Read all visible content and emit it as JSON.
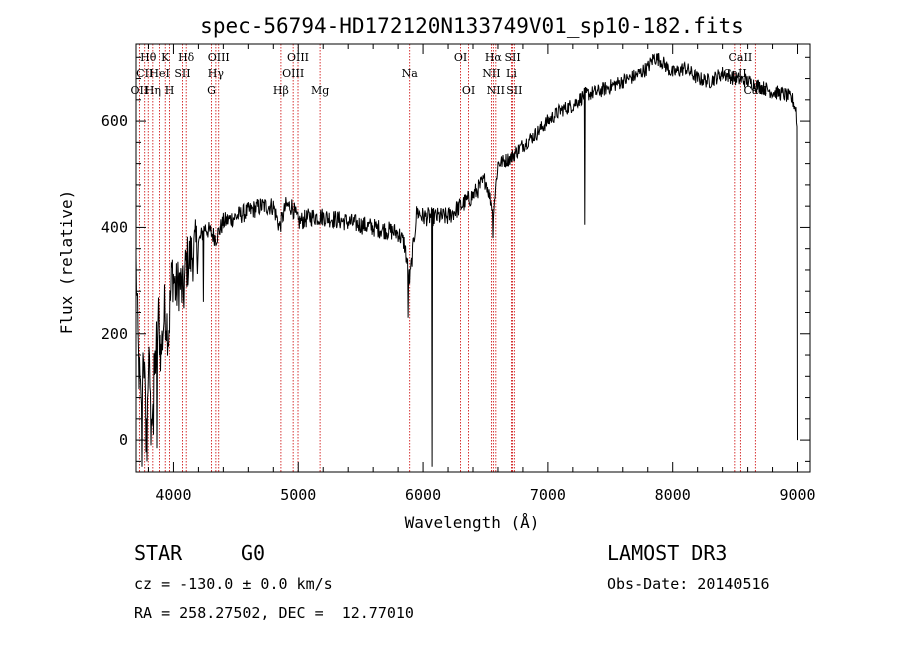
{
  "chart_data": {
    "type": "line",
    "title": "spec-56794-HD172120N133749V01_sp10-182.fits",
    "xlabel": "Wavelength (Å)",
    "ylabel": "Flux (relative)",
    "xlim": [
      3700,
      9100
    ],
    "ylim": [
      -60,
      745
    ],
    "xticks": [
      4000,
      5000,
      6000,
      7000,
      8000,
      9000
    ],
    "yticks": [
      0,
      200,
      400,
      600
    ],
    "series": [
      {
        "name": "Flux",
        "anchors": [
          [
            3700,
            330
          ],
          [
            3720,
            150
          ],
          [
            3740,
            60
          ],
          [
            3760,
            180
          ],
          [
            3780,
            20
          ],
          [
            3800,
            140
          ],
          [
            3830,
            60
          ],
          [
            3860,
            170
          ],
          [
            3880,
            230
          ],
          [
            3900,
            160
          ],
          [
            3930,
            250
          ],
          [
            3960,
            200
          ],
          [
            3990,
            320
          ],
          [
            4020,
            280
          ],
          [
            4050,
            300
          ],
          [
            4080,
            270
          ],
          [
            4100,
            330
          ],
          [
            4150,
            350
          ],
          [
            4200,
            370
          ],
          [
            4250,
            400
          ],
          [
            4300,
            390
          ],
          [
            4340,
            380
          ],
          [
            4400,
            410
          ],
          [
            4500,
            420
          ],
          [
            4600,
            430
          ],
          [
            4700,
            440
          ],
          [
            4800,
            440
          ],
          [
            4850,
            400
          ],
          [
            4900,
            440
          ],
          [
            4950,
            440
          ],
          [
            5000,
            410
          ],
          [
            5100,
            420
          ],
          [
            5200,
            420
          ],
          [
            5300,
            415
          ],
          [
            5400,
            410
          ],
          [
            5500,
            405
          ],
          [
            5600,
            400
          ],
          [
            5700,
            395
          ],
          [
            5800,
            390
          ],
          [
            5850,
            370
          ],
          [
            5893,
            300
          ],
          [
            5950,
            430
          ],
          [
            6000,
            420
          ],
          [
            6100,
            420
          ],
          [
            6200,
            420
          ],
          [
            6300,
            440
          ],
          [
            6400,
            460
          ],
          [
            6500,
            490
          ],
          [
            6563,
            430
          ],
          [
            6600,
            520
          ],
          [
            6700,
            530
          ],
          [
            6800,
            555
          ],
          [
            6900,
            575
          ],
          [
            7000,
            600
          ],
          [
            7100,
            620
          ],
          [
            7200,
            630
          ],
          [
            7300,
            650
          ],
          [
            7400,
            655
          ],
          [
            7500,
            665
          ],
          [
            7600,
            675
          ],
          [
            7700,
            685
          ],
          [
            7800,
            700
          ],
          [
            7850,
            720
          ],
          [
            7900,
            715
          ],
          [
            8000,
            690
          ],
          [
            8100,
            700
          ],
          [
            8200,
            680
          ],
          [
            8300,
            675
          ],
          [
            8400,
            690
          ],
          [
            8500,
            680
          ],
          [
            8600,
            675
          ],
          [
            8700,
            665
          ],
          [
            8800,
            655
          ],
          [
            8900,
            650
          ],
          [
            8960,
            640
          ],
          [
            8990,
            620
          ],
          [
            9000,
            560
          ]
        ],
        "spikes": [
          {
            "x": 3750,
            "y": -50
          },
          {
            "x": 3790,
            "y": -40
          },
          {
            "x": 3820,
            "y": -10
          },
          {
            "x": 3840,
            "y": 10
          },
          {
            "x": 3870,
            "y": -15
          },
          {
            "x": 4240,
            "y": 260
          },
          {
            "x": 5880,
            "y": 230
          },
          {
            "x": 6072,
            "y": -50
          },
          {
            "x": 6562,
            "y": 380
          },
          {
            "x": 7297,
            "y": 405
          },
          {
            "x": 9000,
            "y": 0
          }
        ]
      }
    ],
    "lines": [
      {
        "name": "Hθ",
        "wl": 3798,
        "row": 1
      },
      {
        "name": "CII",
        "wl": 3770,
        "row": 2
      },
      {
        "name": "OII",
        "wl": 3727,
        "row": 3
      },
      {
        "name": "Hη",
        "wl": 3835,
        "row": 3
      },
      {
        "name": "K",
        "wl": 3934,
        "row": 1
      },
      {
        "name": "HeI",
        "wl": 3889,
        "row": 2
      },
      {
        "name": "H",
        "wl": 3969,
        "row": 3
      },
      {
        "name": "Hδ",
        "wl": 4102,
        "row": 1
      },
      {
        "name": "SII",
        "wl": 4072,
        "row": 2
      },
      {
        "name": "OIII",
        "wl": 4363,
        "row": 1
      },
      {
        "name": "Hγ",
        "wl": 4340,
        "row": 2
      },
      {
        "name": "G",
        "wl": 4305,
        "row": 3
      },
      {
        "name": "Hβ",
        "wl": 4861,
        "row": 3
      },
      {
        "name": "OIII",
        "wl": 4998,
        "row": 1
      },
      {
        "name": "OIII",
        "wl": 4959,
        "row": 2
      },
      {
        "name": "Mg",
        "wl": 5175,
        "row": 3
      },
      {
        "name": "Na",
        "wl": 5893,
        "row": 2
      },
      {
        "name": "OI",
        "wl": 6300,
        "row": 1
      },
      {
        "name": "OI",
        "wl": 6364,
        "row": 3
      },
      {
        "name": "Hα",
        "wl": 6563,
        "row": 1
      },
      {
        "name": "NII",
        "wl": 6548,
        "row": 2
      },
      {
        "name": "NII",
        "wl": 6583,
        "row": 3
      },
      {
        "name": "SII",
        "wl": 6717,
        "row": 1
      },
      {
        "name": "Li",
        "wl": 6708,
        "row": 2
      },
      {
        "name": "SII",
        "wl": 6731,
        "row": 3
      },
      {
        "name": "CaII",
        "wl": 8542,
        "row": 1
      },
      {
        "name": "CaII",
        "wl": 8498,
        "row": 2
      },
      {
        "name": "CaII",
        "wl": 8662,
        "row": 3
      }
    ]
  },
  "info": {
    "object_class": "STAR",
    "subclass": "G0",
    "survey": "LAMOST DR3",
    "redshift": "cz = -130.0 ± 0.0 km/s",
    "obs_date": "Obs-Date: 20140516",
    "coords": "RA = 258.27502, DEC =  12.77010"
  },
  "colors": {
    "spectrum": "#000000",
    "line_marker": "#cc0000",
    "axes": "#000000"
  }
}
